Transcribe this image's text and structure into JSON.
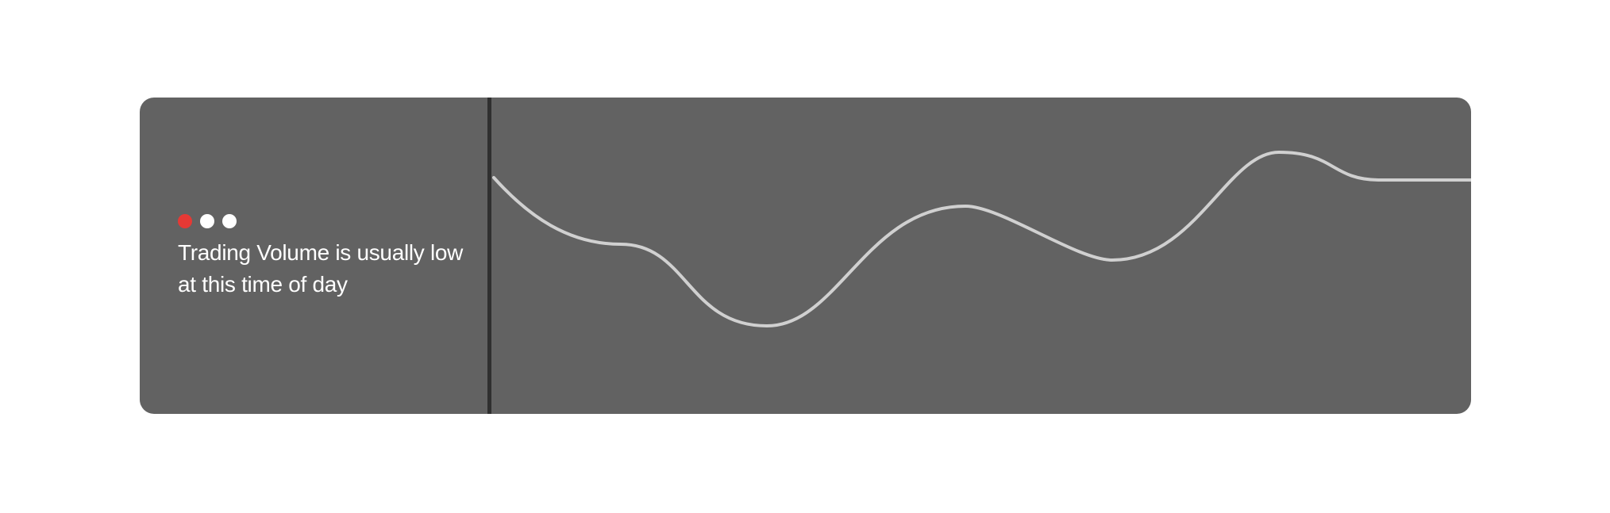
{
  "card": {
    "message": "Trading Volume is usually low at this time of day"
  },
  "status_dots": [
    {
      "name": "status-dot-red",
      "color": "#e53935"
    },
    {
      "name": "status-dot-white-1",
      "color": "#ffffff"
    },
    {
      "name": "status-dot-white-2",
      "color": "#ffffff"
    }
  ],
  "colors": {
    "card_background": "#626262",
    "divider": "#2f2f2f",
    "line": "#d0d0d0",
    "text": "#ffffff"
  }
}
